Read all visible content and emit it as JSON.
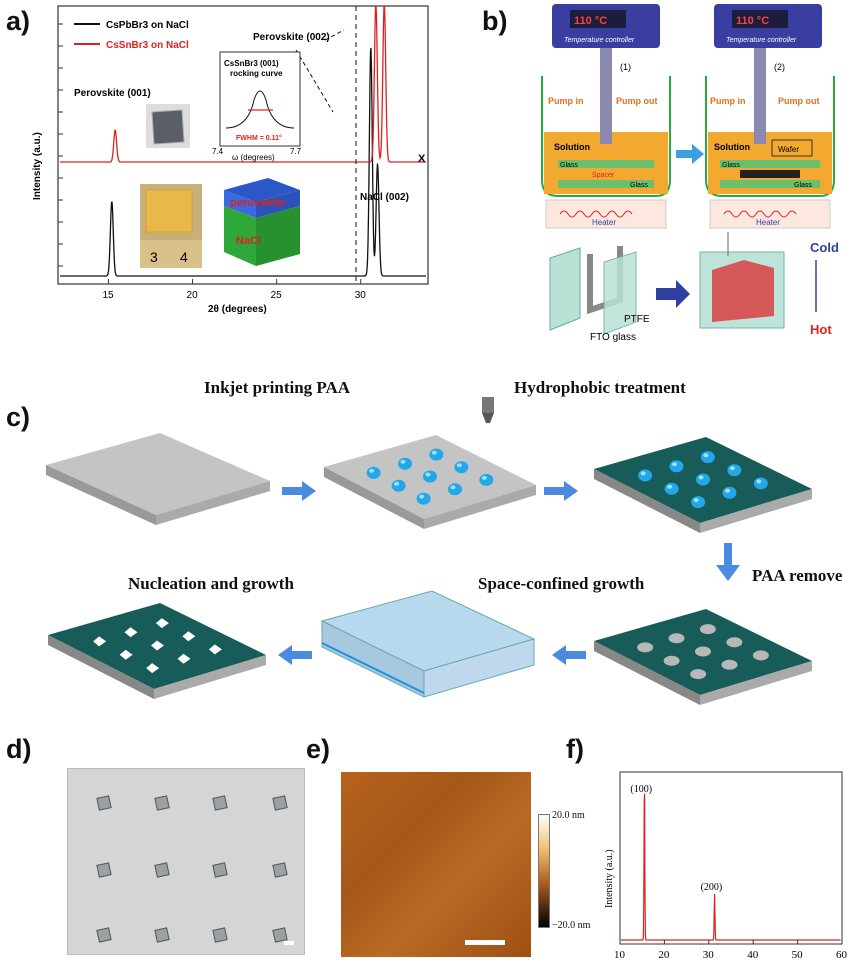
{
  "panels": {
    "a": {
      "label": "a)",
      "chart_data": {
        "type": "line",
        "xlabel": "2θ (degrees)",
        "ylabel": "Intensity (a.u.)",
        "xlim": [
          12,
          34
        ],
        "x_ticks": [
          "15",
          "20",
          "25",
          "30"
        ],
        "series": [
          {
            "name": "CsPbBr3 on NaCl",
            "color": "#111111",
            "peaks": [
              {
                "x": 15.2,
                "y": 0.3
              },
              {
                "x": 30.6,
                "y": 0.92
              },
              {
                "x": 31.0,
                "y": 0.45
              }
            ]
          },
          {
            "name": "CsSnBr3 on NaCl",
            "color": "#e02020",
            "peaks": [
              {
                "x": 15.4,
                "y": 0.2
              },
              {
                "x": 30.9,
                "y": 1.0
              },
              {
                "x": 31.4,
                "y": 1.0
              }
            ]
          }
        ],
        "annotations": [
          "Perovskite (001)",
          "Perovskite (002)",
          "NaCl (002)",
          "X"
        ],
        "inset": {
          "title_line1": "CsSnBr3 (001)",
          "title_line2": "rocking curve",
          "fwhm": "FWHM = 0.11°",
          "xlabel": "ω (degrees)",
          "x_ticks": [
            "7.4",
            "7.7"
          ]
        },
        "inset_labels": {
          "perovskite": "perovskite",
          "nacl": "NaCl",
          "ruler_3": "3",
          "ruler_4": "4"
        }
      }
    },
    "b": {
      "label": "b)",
      "controller_text": "110 °C",
      "controller_caption": "Temperature controller",
      "step1": "(1)",
      "step2": "(2)",
      "pump_in": "Pump in",
      "pump_out": "Pump out",
      "solution": "Solution",
      "glass": "Glass",
      "spacer": "Spacer",
      "wafer": "Wafer",
      "heater": "Heater",
      "ptfe": "PTFE",
      "fto": "FTO glass",
      "cold": "Cold",
      "hot": "Hot"
    },
    "c": {
      "label": "c)",
      "step_inkjet": "Inkjet printing PAA",
      "step_hydrophobic": "Hydrophobic treatment",
      "step_remove": "PAA remove",
      "step_space": "Space-confined growth",
      "step_nucleation": "Nucleation and growth"
    },
    "d": {
      "label": "d)"
    },
    "e": {
      "label": "e)",
      "scale_top": "20.0 nm",
      "scale_bottom": "−20.0 nm"
    },
    "f": {
      "label": "f)",
      "chart_data": {
        "type": "line",
        "ylabel": "Intensity (a.u.)",
        "xlim": [
          10,
          60
        ],
        "x_ticks": [
          "10",
          "20",
          "30",
          "40",
          "50",
          "60"
        ],
        "series": [
          {
            "color": "#e02020",
            "peaks": [
              {
                "x": 15.5,
                "y": 1.0,
                "label": "(100)"
              },
              {
                "x": 31.3,
                "y": 0.28,
                "label": "(200)"
              }
            ]
          }
        ]
      }
    }
  }
}
